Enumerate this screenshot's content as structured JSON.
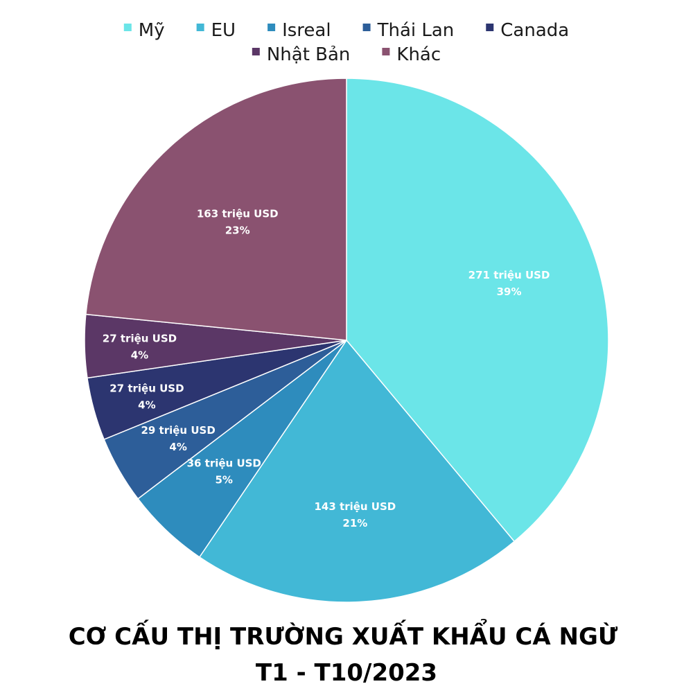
{
  "chart_data": {
    "type": "pie",
    "title": "CƠ CẤU THỊ TRƯỜNG XUẤT KHẨU CÁ NGỪ",
    "subtitle": "T1 - T10/2023",
    "legend_position": "top",
    "slices": [
      {
        "name": "Mỹ",
        "value": 271,
        "value_label": "271 triệu USD",
        "percent_label": "39%",
        "color": "#6be5e8"
      },
      {
        "name": "EU",
        "value": 143,
        "value_label": "143 triệu USD",
        "percent_label": "21%",
        "color": "#42b8d6"
      },
      {
        "name": "Isreal",
        "value": 36,
        "value_label": "36 triệu USD",
        "percent_label": "5%",
        "color": "#2e8cbd"
      },
      {
        "name": "Thái Lan",
        "value": 29,
        "value_label": "29 triệu USD",
        "percent_label": "4%",
        "color": "#2d5e99"
      },
      {
        "name": "Canada",
        "value": 27,
        "value_label": "27 triệu USD",
        "percent_label": "4%",
        "color": "#2c3570"
      },
      {
        "name": "Nhật Bản",
        "value": 27,
        "value_label": "27 triệu USD",
        "percent_label": "4%",
        "color": "#5b3766"
      },
      {
        "name": "Khác",
        "value": 163,
        "value_label": "163 triệu USD",
        "percent_label": "23%",
        "color": "#8a5270"
      }
    ]
  }
}
